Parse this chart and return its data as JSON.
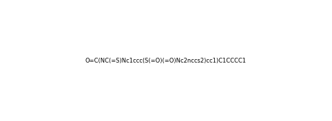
{
  "smiles": "O=C(NC(=S)Nc1ccc(S(=O)(=O)Nc2nccs2)cc1)C1CCCC1",
  "title": "",
  "background_color": "#ffffff",
  "figsize": [
    4.82,
    1.76
  ],
  "dpi": 100
}
